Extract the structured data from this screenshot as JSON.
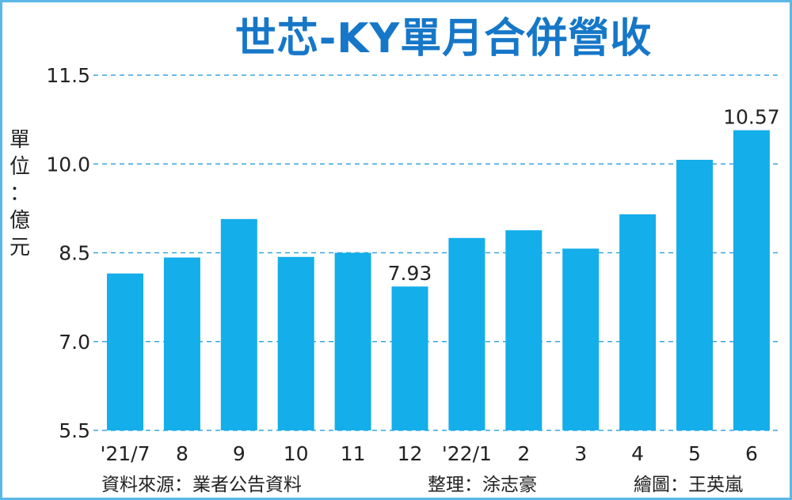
{
  "title": "世芯-KY單月合併營收",
  "unit_label": [
    "單",
    "位",
    "：",
    "億",
    "元"
  ],
  "footer": {
    "source": "資料來源：業者公告資料",
    "compiler": "整理：涂志豪",
    "illustrator": "繪圖：王英嵐"
  },
  "colors": {
    "bar": "#14aeea",
    "grid": "#3aa6dd",
    "title": "#1677c8",
    "frame": "#5bb8e6"
  },
  "chart_data": {
    "type": "bar",
    "title": "世芯-KY單月合併營收",
    "ylabel": "單位：億元",
    "categories": [
      "'21/7",
      "8",
      "9",
      "10",
      "11",
      "12",
      "'22/1",
      "2",
      "3",
      "4",
      "5",
      "6"
    ],
    "values": [
      8.15,
      8.42,
      9.07,
      8.43,
      8.5,
      7.93,
      8.75,
      8.88,
      8.57,
      9.15,
      10.07,
      10.57
    ],
    "data_labels": [
      null,
      null,
      null,
      null,
      null,
      "7.93",
      null,
      null,
      null,
      null,
      null,
      "10.57"
    ],
    "ylim": [
      5.5,
      11.5
    ],
    "yticks": [
      5.5,
      7.0,
      8.5,
      10.0,
      11.5
    ],
    "ytick_labels": [
      "5.5",
      "7.0",
      "8.5",
      "10.0",
      "11.5"
    ],
    "grid": true,
    "legend": "none"
  }
}
